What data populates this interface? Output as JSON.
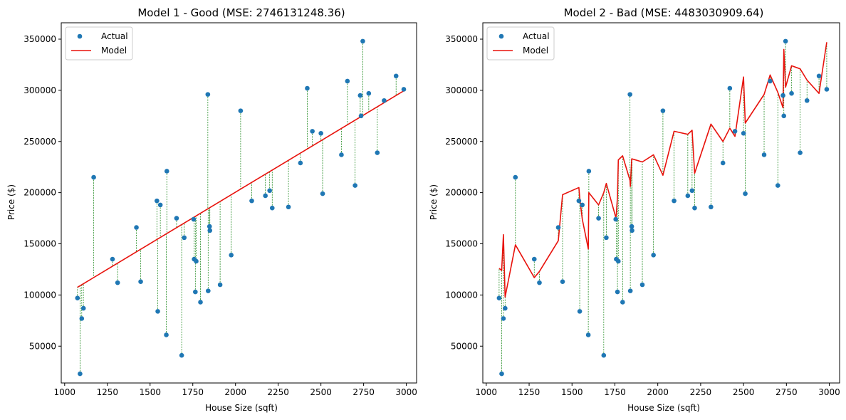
{
  "colors": {
    "points": "#1f77b4",
    "model": "#e8120c",
    "residual": "#228b22",
    "axes": "#000000"
  },
  "chart_data": [
    {
      "type": "scatter",
      "title": "Model 1 - Good (MSE: 2746131248.36)",
      "xlabel": "House Size (sqft)",
      "ylabel": "Price ($)",
      "xlim": [
        980,
        3060
      ],
      "ylim": [
        14000,
        366000
      ],
      "xticks": [
        1000,
        1250,
        1500,
        1750,
        2000,
        2250,
        2500,
        2750,
        3000
      ],
      "yticks": [
        50000,
        100000,
        150000,
        200000,
        250000,
        300000,
        350000
      ],
      "grid": false,
      "legend": {
        "position": "top-left",
        "entries": [
          "Actual",
          "Model"
        ]
      },
      "model_line": {
        "x": [
          1075,
          2985
        ],
        "y": [
          107500,
          299500
        ]
      },
      "points": {
        "x": [
          1075,
          1090,
          1100,
          1110,
          1170,
          1280,
          1310,
          1420,
          1445,
          1540,
          1545,
          1560,
          1595,
          1598,
          1655,
          1685,
          1700,
          1755,
          1758,
          1765,
          1770,
          1795,
          1838,
          1840,
          1848,
          1850,
          1910,
          1975,
          2030,
          2095,
          2175,
          2200,
          2215,
          2310,
          2380,
          2420,
          2450,
          2500,
          2510,
          2620,
          2655,
          2700,
          2730,
          2735,
          2745,
          2780,
          2830,
          2870,
          2940,
          2985
        ],
        "y": [
          97000,
          23000,
          77000,
          87000,
          215000,
          135000,
          112000,
          166000,
          113000,
          192000,
          84000,
          188000,
          61000,
          221000,
          175000,
          41000,
          156000,
          174000,
          135000,
          103000,
          133000,
          93000,
          296000,
          104000,
          167000,
          163000,
          110000,
          139000,
          280000,
          192000,
          197000,
          202000,
          185000,
          186000,
          229000,
          302000,
          260000,
          258000,
          199000,
          237000,
          309000,
          207000,
          295000,
          275000,
          348000,
          297000,
          239000,
          290000,
          314000,
          301000
        ]
      }
    },
    {
      "type": "scatter",
      "title": "Model 2 - Bad (MSE: 4483030909.64)",
      "xlabel": "House Size (sqft)",
      "ylabel": "Price ($)",
      "xlim": [
        980,
        3060
      ],
      "ylim": [
        14000,
        366000
      ],
      "xticks": [
        1000,
        1250,
        1500,
        1750,
        2000,
        2250,
        2500,
        2750,
        3000
      ],
      "yticks": [
        50000,
        100000,
        150000,
        200000,
        250000,
        300000,
        350000
      ],
      "grid": false,
      "legend": {
        "position": "top-left",
        "entries": [
          "Actual",
          "Model"
        ]
      },
      "points": {
        "x": [
          1075,
          1090,
          1100,
          1110,
          1170,
          1280,
          1310,
          1420,
          1445,
          1540,
          1545,
          1560,
          1595,
          1598,
          1655,
          1685,
          1700,
          1755,
          1758,
          1765,
          1770,
          1795,
          1838,
          1840,
          1848,
          1850,
          1910,
          1975,
          2030,
          2095,
          2175,
          2200,
          2215,
          2310,
          2380,
          2420,
          2450,
          2500,
          2510,
          2620,
          2655,
          2700,
          2730,
          2735,
          2745,
          2780,
          2830,
          2870,
          2940,
          2985
        ],
        "y": [
          97000,
          23000,
          77000,
          87000,
          215000,
          135000,
          112000,
          166000,
          113000,
          192000,
          84000,
          188000,
          61000,
          221000,
          175000,
          41000,
          156000,
          174000,
          135000,
          103000,
          133000,
          93000,
          296000,
          104000,
          167000,
          163000,
          110000,
          139000,
          280000,
          192000,
          197000,
          202000,
          185000,
          186000,
          229000,
          302000,
          260000,
          258000,
          199000,
          237000,
          309000,
          207000,
          295000,
          275000,
          348000,
          297000,
          239000,
          290000,
          314000,
          301000
        ]
      },
      "model_line": {
        "x": [
          1075,
          1090,
          1100,
          1110,
          1170,
          1280,
          1310,
          1420,
          1445,
          1540,
          1545,
          1560,
          1595,
          1598,
          1655,
          1685,
          1700,
          1755,
          1758,
          1765,
          1770,
          1795,
          1838,
          1840,
          1848,
          1850,
          1910,
          1975,
          2030,
          2095,
          2175,
          2200,
          2215,
          2310,
          2380,
          2420,
          2450,
          2500,
          2510,
          2620,
          2655,
          2700,
          2730,
          2735,
          2745,
          2780,
          2830,
          2870,
          2940,
          2985
        ],
        "y": [
          126000,
          124000,
          159000,
          98000,
          149000,
          117000,
          123000,
          153000,
          198000,
          205000,
          195000,
          174000,
          145000,
          200000,
          188000,
          200000,
          209000,
          176000,
          178000,
          196000,
          232000,
          236000,
          212000,
          206000,
          233000,
          233000,
          230000,
          237000,
          217000,
          260000,
          257000,
          261000,
          219000,
          267000,
          250000,
          263000,
          255000,
          313000,
          268000,
          296000,
          315000,
          298000,
          283000,
          340000,
          303000,
          324000,
          321000,
          310000,
          297000,
          347000
        ]
      }
    }
  ]
}
